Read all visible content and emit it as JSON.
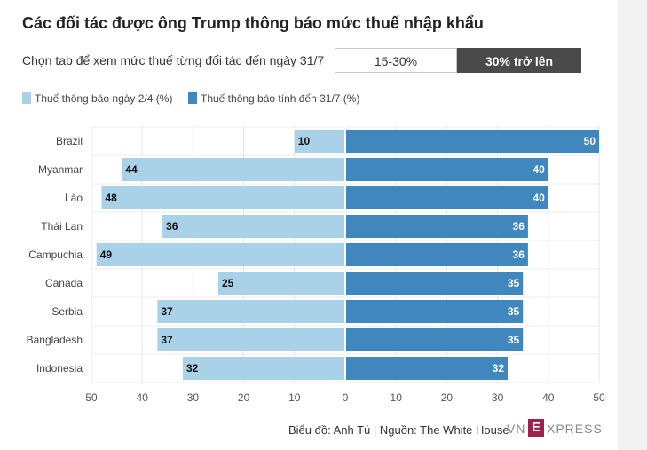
{
  "header": {
    "title": "Các đối tác được ông Trump thông báo mức thuế nhập khẩu",
    "tab_caption": "Chọn tab để xem mức thuế từng đối tác đến ngày 31/7",
    "tabs": [
      {
        "label": "15-30%",
        "active": false
      },
      {
        "label": "30% trở lên",
        "active": true
      }
    ]
  },
  "legend": [
    {
      "label": "Thuế thông báo ngày 2/4 (%)",
      "color": "#a9d1e8"
    },
    {
      "label": "Thuế thông báo tính đến 31/7 (%)",
      "color": "#3f87bd"
    }
  ],
  "chart_data": {
    "type": "bar",
    "orientation": "horizontal-diverging",
    "categories": [
      "Brazil",
      "Myanmar",
      "Lào",
      "Thái Lan",
      "Campuchia",
      "Canada",
      "Serbia",
      "Bangladesh",
      "Indonesia"
    ],
    "series": [
      {
        "name": "Thuế thông báo ngày 2/4 (%)",
        "values": [
          10,
          44,
          48,
          36,
          49,
          25,
          37,
          37,
          32
        ],
        "color": "#a9d1e8",
        "side": "left"
      },
      {
        "name": "Thuế thông báo tính đến 31/7 (%)",
        "values": [
          50,
          40,
          40,
          36,
          36,
          35,
          35,
          35,
          32
        ],
        "color": "#3f87bd",
        "side": "right"
      }
    ],
    "x_ticks": [
      "50",
      "40",
      "30",
      "20",
      "10",
      "0",
      "10",
      "20",
      "30",
      "40",
      "50"
    ],
    "xlim": [
      -50,
      50
    ],
    "grid": true
  },
  "footer": {
    "credit": "Biểu đồ: Anh Tú | Nguồn: The White House",
    "logo_vn": "VN",
    "logo_e": "E",
    "logo_rest": "XPRESS"
  }
}
